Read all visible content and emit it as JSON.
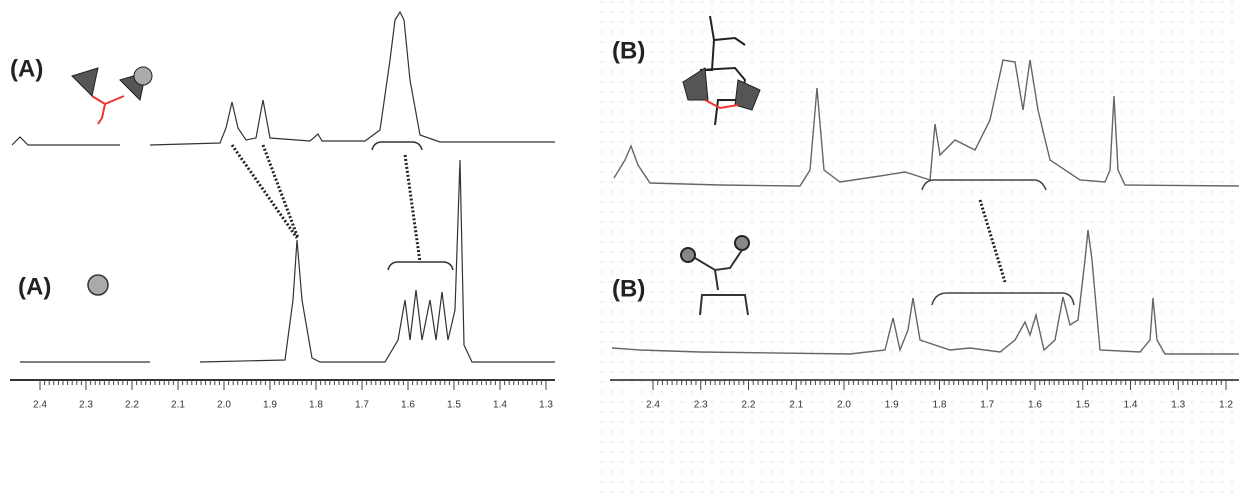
{
  "panels": [
    {
      "labels": [
        "(A)",
        "(A)"
      ],
      "axis_ticks": [
        "2.4",
        "2.3",
        "2.2",
        "2.1",
        "2.0",
        "1.9",
        "1.8",
        "1.7",
        "1.6",
        "1.5",
        "1.4",
        "1.3"
      ]
    },
    {
      "labels": [
        "(B)",
        "(B)"
      ],
      "axis_ticks": [
        "2.4",
        "2.3",
        "2.2",
        "2.1",
        "2.0",
        "1.9",
        "1.8",
        "1.7",
        "1.6",
        "1.5",
        "1.4",
        "1.3",
        "1.2"
      ]
    }
  ]
}
